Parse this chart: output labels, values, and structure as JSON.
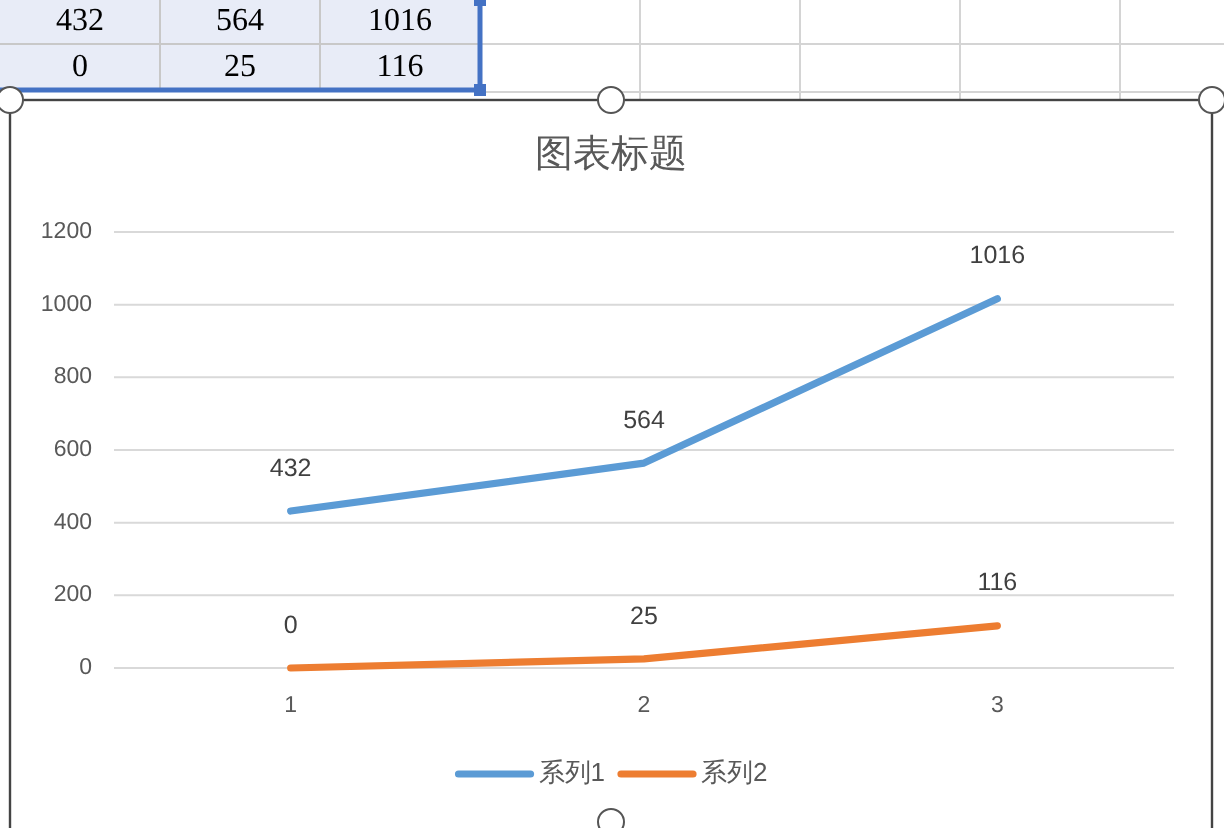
{
  "chart_data": {
    "type": "line",
    "title": "图表标题",
    "categories": [
      "1",
      "2",
      "3"
    ],
    "series": [
      {
        "name": "系列1",
        "color": "#5b9bd5",
        "values": [
          432,
          564,
          1016
        ]
      },
      {
        "name": "系列2",
        "color": "#ed7d31",
        "values": [
          0,
          25,
          116
        ]
      }
    ],
    "ylim": [
      0,
      1200
    ],
    "yticks": [
      0,
      200,
      400,
      600,
      800,
      1000,
      1200
    ],
    "grid": "y",
    "legend": "bottom",
    "data_labels": true,
    "line_style": "solid",
    "annotations": [
      "432",
      "564",
      "1016",
      "0",
      "25",
      "116"
    ]
  }
}
